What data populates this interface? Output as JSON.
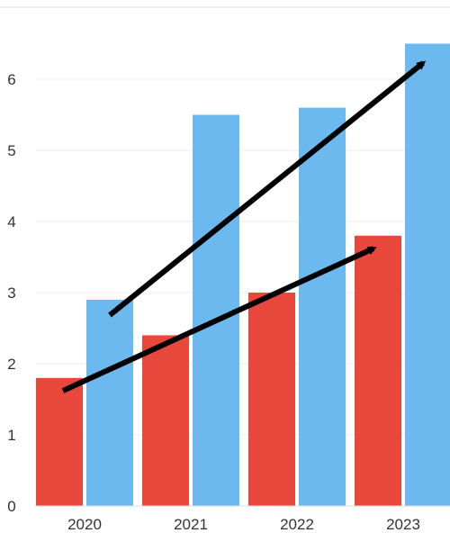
{
  "chart_data": {
    "type": "bar",
    "categories": [
      "2020",
      "2021",
      "2022",
      "2023"
    ],
    "series": [
      {
        "values": [
          1.8,
          2.4,
          3.0,
          3.8
        ],
        "color": "#e8473c"
      },
      {
        "values": [
          2.9,
          5.5,
          5.6,
          6.5
        ],
        "color": "#6cb9f0"
      }
    ],
    "yticks": [
      "0",
      "1",
      "2",
      "3",
      "4",
      "5",
      "6"
    ],
    "ylim": [
      0,
      6.8
    ],
    "grid": true,
    "legend": "none",
    "annotations": [
      {
        "type": "trend-arrow",
        "series": 0,
        "color": "#000000"
      },
      {
        "type": "trend-arrow",
        "series": 1,
        "color": "#000000"
      }
    ]
  }
}
